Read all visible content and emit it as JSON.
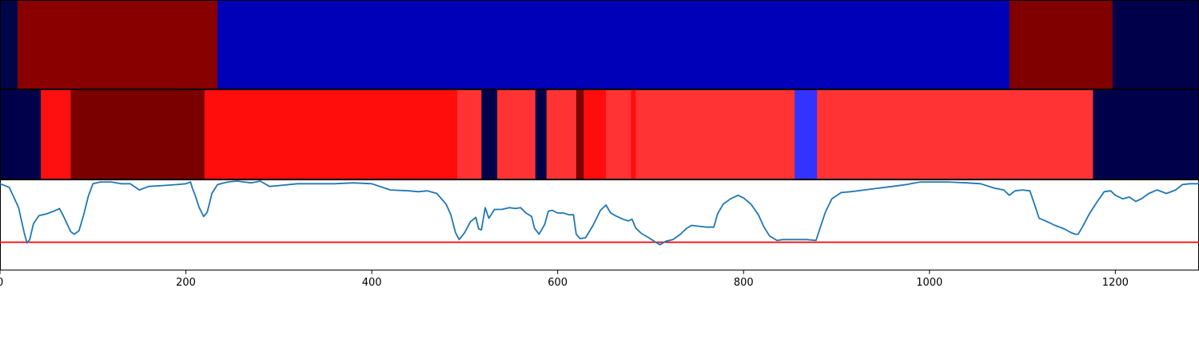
{
  "chart_data": {
    "type": "segmentation-strips-and-line",
    "x_axis": {
      "xlim": [
        0,
        1290
      ],
      "ticks": [
        0,
        200,
        400,
        600,
        800,
        1000,
        1200
      ],
      "tick_labels": [
        "0",
        "200",
        "400",
        "600",
        "800",
        "1000",
        "1200"
      ]
    },
    "strips": [
      {
        "name": "top-strip",
        "segments": [
          {
            "start": 0,
            "end": 19,
            "color": "#000548"
          },
          {
            "start": 19,
            "end": 84,
            "color": "#8a0000"
          },
          {
            "start": 84,
            "end": 234,
            "color": "#880000"
          },
          {
            "start": 234,
            "end": 1086,
            "color": "#0000b8"
          },
          {
            "start": 1086,
            "end": 1197,
            "color": "#800000"
          },
          {
            "start": 1197,
            "end": 1290,
            "color": "#00004a"
          }
        ]
      },
      {
        "name": "middle-strip",
        "segments": [
          {
            "start": 0,
            "end": 44,
            "color": "#00004a"
          },
          {
            "start": 44,
            "end": 76,
            "color": "#ff1010"
          },
          {
            "start": 76,
            "end": 220,
            "color": "#7a0000"
          },
          {
            "start": 220,
            "end": 492,
            "color": "#ff0c0c"
          },
          {
            "start": 492,
            "end": 518,
            "color": "#ff3333"
          },
          {
            "start": 518,
            "end": 535,
            "color": "#00004a"
          },
          {
            "start": 535,
            "end": 576,
            "color": "#ff3333"
          },
          {
            "start": 576,
            "end": 588,
            "color": "#00004a"
          },
          {
            "start": 588,
            "end": 620,
            "color": "#ff3333"
          },
          {
            "start": 620,
            "end": 628,
            "color": "#7a0000"
          },
          {
            "start": 628,
            "end": 652,
            "color": "#ff0c0c"
          },
          {
            "start": 652,
            "end": 679,
            "color": "#ff3333"
          },
          {
            "start": 679,
            "end": 684,
            "color": "#ff0c0c"
          },
          {
            "start": 684,
            "end": 855,
            "color": "#ff3333"
          },
          {
            "start": 855,
            "end": 879,
            "color": "#3333ff"
          },
          {
            "start": 879,
            "end": 1176,
            "color": "#ff3333"
          },
          {
            "start": 1176,
            "end": 1290,
            "color": "#00004a"
          }
        ]
      }
    ],
    "line_series": {
      "name": "signal",
      "color": "#1f77b4",
      "ylim": [
        0,
        1
      ],
      "threshold": 0.31,
      "threshold_color": "#ff0000",
      "points": [
        [
          0,
          0.97
        ],
        [
          10,
          0.93
        ],
        [
          20,
          0.7
        ],
        [
          26,
          0.42
        ],
        [
          29,
          0.3
        ],
        [
          32,
          0.34
        ],
        [
          36,
          0.52
        ],
        [
          42,
          0.61
        ],
        [
          50,
          0.63
        ],
        [
          58,
          0.66
        ],
        [
          64,
          0.69
        ],
        [
          68,
          0.61
        ],
        [
          72,
          0.52
        ],
        [
          76,
          0.43
        ],
        [
          80,
          0.4
        ],
        [
          85,
          0.44
        ],
        [
          90,
          0.62
        ],
        [
          95,
          0.83
        ],
        [
          100,
          0.97
        ],
        [
          108,
          0.99
        ],
        [
          120,
          0.99
        ],
        [
          130,
          0.97
        ],
        [
          140,
          0.97
        ],
        [
          150,
          0.9
        ],
        [
          160,
          0.94
        ],
        [
          175,
          0.95
        ],
        [
          190,
          0.96
        ],
        [
          200,
          0.97
        ],
        [
          205,
          0.99
        ],
        [
          207,
          0.92
        ],
        [
          210,
          0.84
        ],
        [
          214,
          0.71
        ],
        [
          219,
          0.6
        ],
        [
          223,
          0.65
        ],
        [
          228,
          0.86
        ],
        [
          234,
          0.96
        ],
        [
          245,
          0.99
        ],
        [
          255,
          1.0
        ],
        [
          270,
          0.98
        ],
        [
          280,
          1.0
        ],
        [
          290,
          0.94
        ],
        [
          300,
          0.95
        ],
        [
          320,
          0.97
        ],
        [
          340,
          0.97
        ],
        [
          360,
          0.97
        ],
        [
          380,
          0.98
        ],
        [
          400,
          0.97
        ],
        [
          420,
          0.9
        ],
        [
          440,
          0.89
        ],
        [
          450,
          0.88
        ],
        [
          460,
          0.89
        ],
        [
          470,
          0.86
        ],
        [
          480,
          0.74
        ],
        [
          485,
          0.62
        ],
        [
          490,
          0.42
        ],
        [
          494,
          0.34
        ],
        [
          500,
          0.42
        ],
        [
          506,
          0.54
        ],
        [
          512,
          0.59
        ],
        [
          515,
          0.46
        ],
        [
          518,
          0.45
        ],
        [
          522,
          0.7
        ],
        [
          526,
          0.58
        ],
        [
          532,
          0.68
        ],
        [
          540,
          0.68
        ],
        [
          548,
          0.7
        ],
        [
          555,
          0.69
        ],
        [
          560,
          0.7
        ],
        [
          566,
          0.64
        ],
        [
          572,
          0.6
        ],
        [
          575,
          0.47
        ],
        [
          580,
          0.4
        ],
        [
          586,
          0.51
        ],
        [
          590,
          0.66
        ],
        [
          594,
          0.67
        ],
        [
          600,
          0.64
        ],
        [
          606,
          0.64
        ],
        [
          612,
          0.62
        ],
        [
          617,
          0.62
        ],
        [
          620,
          0.4
        ],
        [
          624,
          0.35
        ],
        [
          630,
          0.36
        ],
        [
          638,
          0.5
        ],
        [
          646,
          0.67
        ],
        [
          652,
          0.73
        ],
        [
          657,
          0.64
        ],
        [
          662,
          0.61
        ],
        [
          670,
          0.57
        ],
        [
          676,
          0.55
        ],
        [
          680,
          0.57
        ],
        [
          684,
          0.47
        ],
        [
          690,
          0.41
        ],
        [
          698,
          0.36
        ],
        [
          704,
          0.32
        ],
        [
          710,
          0.28
        ],
        [
          716,
          0.32
        ],
        [
          724,
          0.34
        ],
        [
          732,
          0.4
        ],
        [
          738,
          0.46
        ],
        [
          744,
          0.5
        ],
        [
          752,
          0.49
        ],
        [
          760,
          0.48
        ],
        [
          768,
          0.48
        ],
        [
          772,
          0.63
        ],
        [
          778,
          0.74
        ],
        [
          786,
          0.8
        ],
        [
          794,
          0.84
        ],
        [
          800,
          0.81
        ],
        [
          808,
          0.74
        ],
        [
          816,
          0.62
        ],
        [
          822,
          0.48
        ],
        [
          828,
          0.38
        ],
        [
          836,
          0.33
        ],
        [
          842,
          0.34
        ],
        [
          852,
          0.34
        ],
        [
          860,
          0.34
        ],
        [
          868,
          0.34
        ],
        [
          878,
          0.33
        ],
        [
          882,
          0.46
        ],
        [
          888,
          0.65
        ],
        [
          895,
          0.8
        ],
        [
          905,
          0.87
        ],
        [
          915,
          0.88
        ],
        [
          930,
          0.9
        ],
        [
          945,
          0.92
        ],
        [
          960,
          0.94
        ],
        [
          975,
          0.96
        ],
        [
          990,
          0.99
        ],
        [
          1000,
          0.99
        ],
        [
          1020,
          0.99
        ],
        [
          1040,
          0.98
        ],
        [
          1055,
          0.97
        ],
        [
          1070,
          0.92
        ],
        [
          1080,
          0.9
        ],
        [
          1086,
          0.84
        ],
        [
          1092,
          0.89
        ],
        [
          1100,
          0.9
        ],
        [
          1108,
          0.89
        ],
        [
          1112,
          0.77
        ],
        [
          1118,
          0.58
        ],
        [
          1125,
          0.55
        ],
        [
          1135,
          0.5
        ],
        [
          1145,
          0.46
        ],
        [
          1152,
          0.42
        ],
        [
          1157,
          0.4
        ],
        [
          1160,
          0.4
        ],
        [
          1165,
          0.49
        ],
        [
          1172,
          0.63
        ],
        [
          1180,
          0.76
        ],
        [
          1188,
          0.88
        ],
        [
          1195,
          0.89
        ],
        [
          1200,
          0.84
        ],
        [
          1208,
          0.8
        ],
        [
          1215,
          0.82
        ],
        [
          1222,
          0.77
        ],
        [
          1228,
          0.8
        ],
        [
          1236,
          0.86
        ],
        [
          1245,
          0.9
        ],
        [
          1255,
          0.86
        ],
        [
          1265,
          0.9
        ],
        [
          1272,
          0.96
        ],
        [
          1280,
          0.97
        ],
        [
          1290,
          0.97
        ]
      ]
    }
  }
}
